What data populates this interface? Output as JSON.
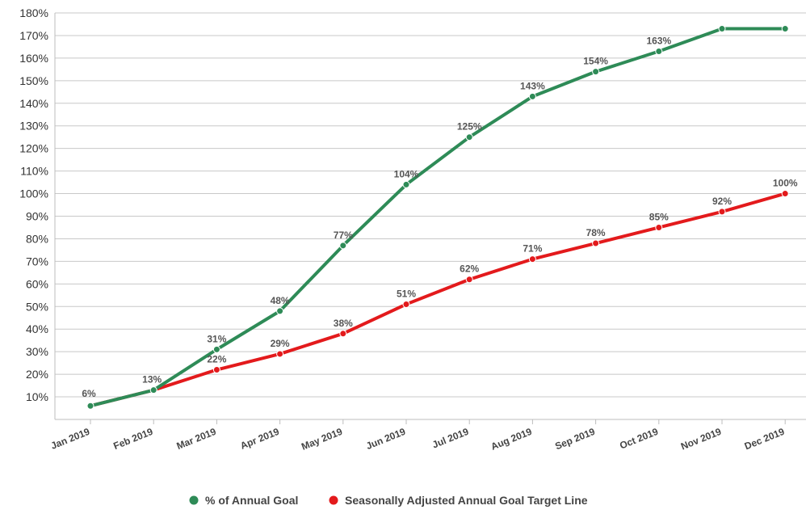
{
  "chart_data": {
    "type": "line",
    "title": "",
    "xlabel": "",
    "ylabel": "",
    "categories": [
      "Jan 2019",
      "Feb 2019",
      "Mar 2019",
      "Apr 2019",
      "May 2019",
      "Jun 2019",
      "Jul 2019",
      "Aug 2019",
      "Sep 2019",
      "Oct 2019",
      "Nov 2019",
      "Dec 2019"
    ],
    "ylim": [
      0,
      180
    ],
    "yticks": [
      "10%",
      "20%",
      "30%",
      "40%",
      "50%",
      "60%",
      "70%",
      "80%",
      "90%",
      "100%",
      "110%",
      "120%",
      "130%",
      "140%",
      "150%",
      "160%",
      "170%",
      "180%"
    ],
    "grid": true,
    "legend_position": "bottom",
    "series": [
      {
        "name": "% of Annual Goal",
        "color": "#2e8b57",
        "values": [
          6,
          13,
          31,
          48,
          77,
          104,
          125,
          143,
          154,
          163,
          173,
          173
        ],
        "labels": [
          "6%",
          "13%",
          "31%",
          "48%",
          "77%",
          "104%",
          "125%",
          "143%",
          "154%",
          "163%",
          "",
          ""
        ]
      },
      {
        "name": "Seasonally Adjusted Annual Goal Target Line",
        "color": "#e31a1c",
        "values": [
          6,
          13,
          22,
          29,
          38,
          51,
          62,
          71,
          78,
          85,
          92,
          100
        ],
        "labels": [
          "",
          "",
          "22%",
          "29%",
          "38%",
          "51%",
          "62%",
          "71%",
          "78%",
          "85%",
          "92%",
          "100%"
        ]
      }
    ]
  }
}
